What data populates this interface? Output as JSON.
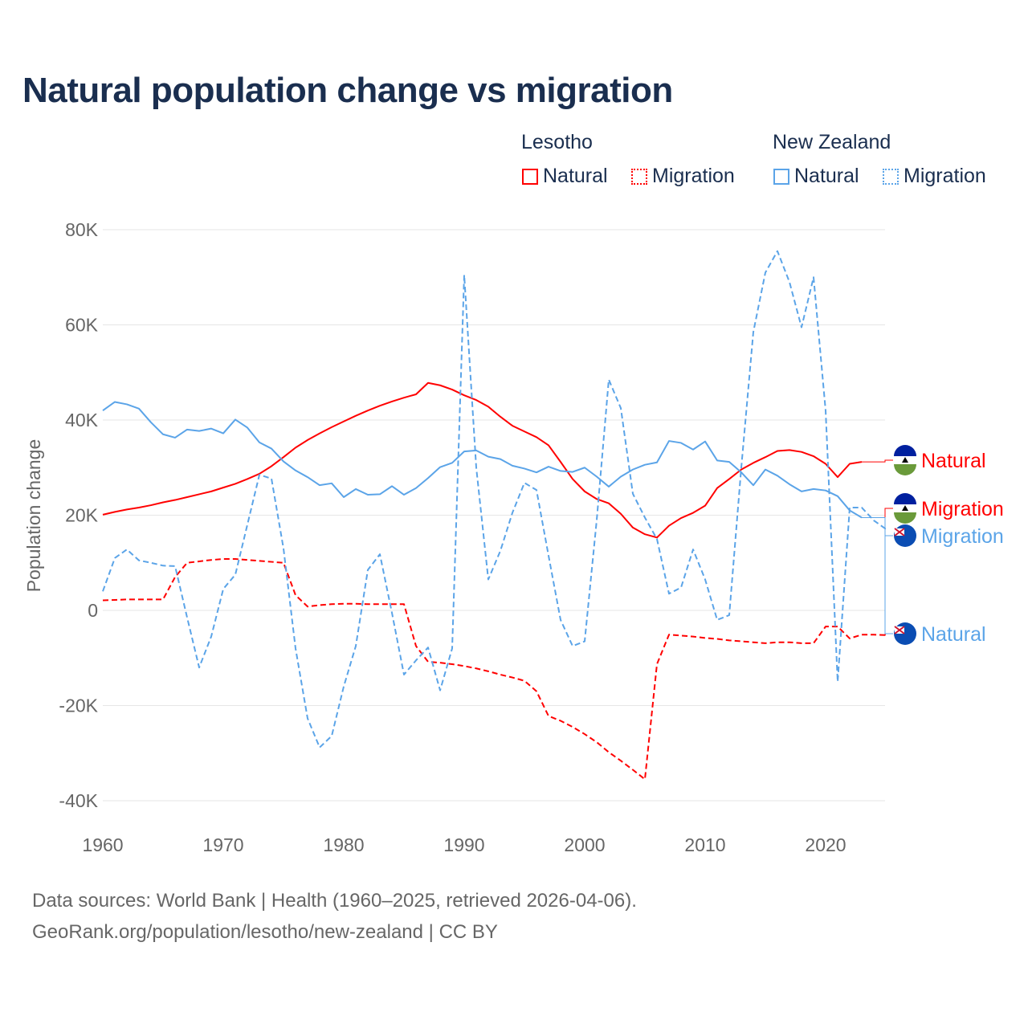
{
  "title": "Natural population change vs migration",
  "legend": {
    "groups": [
      {
        "label": "Lesotho",
        "items": [
          {
            "label": "Natural",
            "style": "solid"
          },
          {
            "label": "Migration",
            "style": "dotted"
          }
        ],
        "color": "#ff0000"
      },
      {
        "label": "New Zealand",
        "items": [
          {
            "label": "Natural",
            "style": "solid"
          },
          {
            "label": "Migration",
            "style": "dotted"
          }
        ],
        "color": "#5ba4e8"
      }
    ]
  },
  "footer": {
    "line1": "Data sources: World Bank | Health (1960–2025, retrieved 2026-04-06).",
    "line2": "GeoRank.org/population/lesotho/new-zealand | CC BY"
  },
  "chart_data": {
    "type": "line",
    "title": "Natural population change vs migration",
    "xlabel": "",
    "ylabel": "Population change",
    "xlim": [
      1960,
      2025
    ],
    "ylim": [
      -40000,
      80000
    ],
    "xticks": [
      1960,
      1970,
      1980,
      1990,
      2000,
      2010,
      2020
    ],
    "yticks": [
      -40000,
      -20000,
      0,
      20000,
      40000,
      60000,
      80000
    ],
    "ytick_labels": [
      "-40K",
      "-20K",
      "0",
      "20K",
      "40K",
      "60K",
      "80K"
    ],
    "grid": true,
    "legend_position": "top-right",
    "series": [
      {
        "name": "Lesotho Natural",
        "end_label": "Natural",
        "color": "#ff0000",
        "dash": false,
        "flag": "lesotho-flag",
        "start": 1960,
        "values": [
          20.1,
          20.7,
          21.2,
          21.6,
          22.1,
          22.7,
          23.2,
          23.8,
          24.4,
          25,
          25.8,
          26.6,
          27.6,
          28.7,
          30.3,
          32.2,
          34.2,
          35.8,
          37.2,
          38.5,
          39.7,
          40.9,
          42,
          43,
          43.9,
          44.7,
          45.4,
          47.8,
          47.3,
          46.4,
          45.2,
          44.2,
          42.8,
          40.7,
          38.8,
          37.6,
          36.4,
          34.7,
          31.2,
          27.6,
          25,
          23.4,
          22.5,
          20.3,
          17.4,
          16,
          15.3,
          17.8,
          19.4,
          20.5,
          22,
          25.7,
          27.6,
          29.6,
          31,
          32.2,
          33.5,
          33.7,
          33.3,
          32.4,
          30.8,
          28,
          30.8,
          31.2
        ]
      },
      {
        "name": "Lesotho Migration",
        "end_label": "Migration",
        "color": "#ff0000",
        "dash": true,
        "flag": "lesotho-flag",
        "start": 1960,
        "values": [
          2.1,
          2.2,
          2.3,
          2.3,
          2.3,
          2.3,
          7,
          10,
          10.3,
          10.6,
          10.8,
          10.8,
          10.6,
          10.4,
          10.2,
          10,
          3.2,
          0.8,
          1.1,
          1.3,
          1.4,
          1.4,
          1.3,
          1.3,
          1.3,
          1.3,
          -7.5,
          -10.8,
          -11,
          -11.3,
          -11.7,
          -12.2,
          -12.8,
          -13.5,
          -14.1,
          -14.8,
          -17,
          -22.2,
          -23.2,
          -24.5,
          -26,
          -27.7,
          -29.8,
          -31.6,
          -33.5,
          -35.5,
          -11.3,
          -5.1,
          -5.3,
          -5.5,
          -5.8,
          -6,
          -6.3,
          -6.5,
          -6.7,
          -6.9,
          -6.7,
          -6.7,
          -6.9,
          -6.9,
          -3.4,
          -3.4,
          -5.9,
          -5.1,
          -5.1,
          -5.2
        ]
      },
      {
        "name": "New Zealand Natural",
        "end_label": "Natural",
        "color": "#5ba4e8",
        "dash": false,
        "flag": "new-zealand-flag",
        "start": 1960,
        "values": [
          42,
          43.8,
          43.3,
          42.4,
          39.5,
          37,
          36.3,
          38,
          37.7,
          38.2,
          37.2,
          40.1,
          38.4,
          35.3,
          34,
          31.3,
          29.4,
          28,
          26.3,
          26.7,
          23.8,
          25.5,
          24.3,
          24.4,
          26.1,
          24.3,
          25.7,
          27.8,
          30.1,
          31,
          33.4,
          33.6,
          32.3,
          31.8,
          30.4,
          29.8,
          29,
          30.2,
          29.3,
          29.1,
          30,
          28.1,
          26,
          28.1,
          29.6,
          30.6,
          31.1,
          35.6,
          35.2,
          33.8,
          35.5,
          31.5,
          31.2,
          29,
          26.3,
          29.6,
          28.3,
          26.5,
          25,
          25.5,
          25.2,
          24,
          21,
          19.5
        ]
      },
      {
        "name": "New Zealand Migration",
        "end_label": "Migration",
        "color": "#5ba4e8",
        "dash": true,
        "flag": "new-zealand-flag",
        "start": 1960,
        "values": [
          4,
          11,
          12.8,
          10.5,
          10,
          9.4,
          9.3,
          -1.5,
          -12,
          -5.5,
          4.5,
          7.5,
          18,
          28.5,
          27.7,
          13,
          -8,
          -22.7,
          -28.8,
          -26.4,
          -16,
          -7.5,
          8.5,
          11.8,
          -0.5,
          -13.5,
          -10.5,
          -7.8,
          -16.8,
          -8,
          70.5,
          30,
          6.5,
          12.5,
          20.5,
          26.8,
          25.3,
          11.5,
          -2,
          -7.5,
          -6.5,
          19,
          48.5,
          42.5,
          24.5,
          19.5,
          15,
          3.5,
          4.8,
          12.8,
          6.5,
          -2,
          -1,
          30,
          58.5,
          71,
          75.5,
          69,
          59.5,
          70,
          42,
          -15,
          21.6,
          21.6,
          18.9,
          17.1
        ]
      }
    ],
    "value_unit": "thousands"
  }
}
